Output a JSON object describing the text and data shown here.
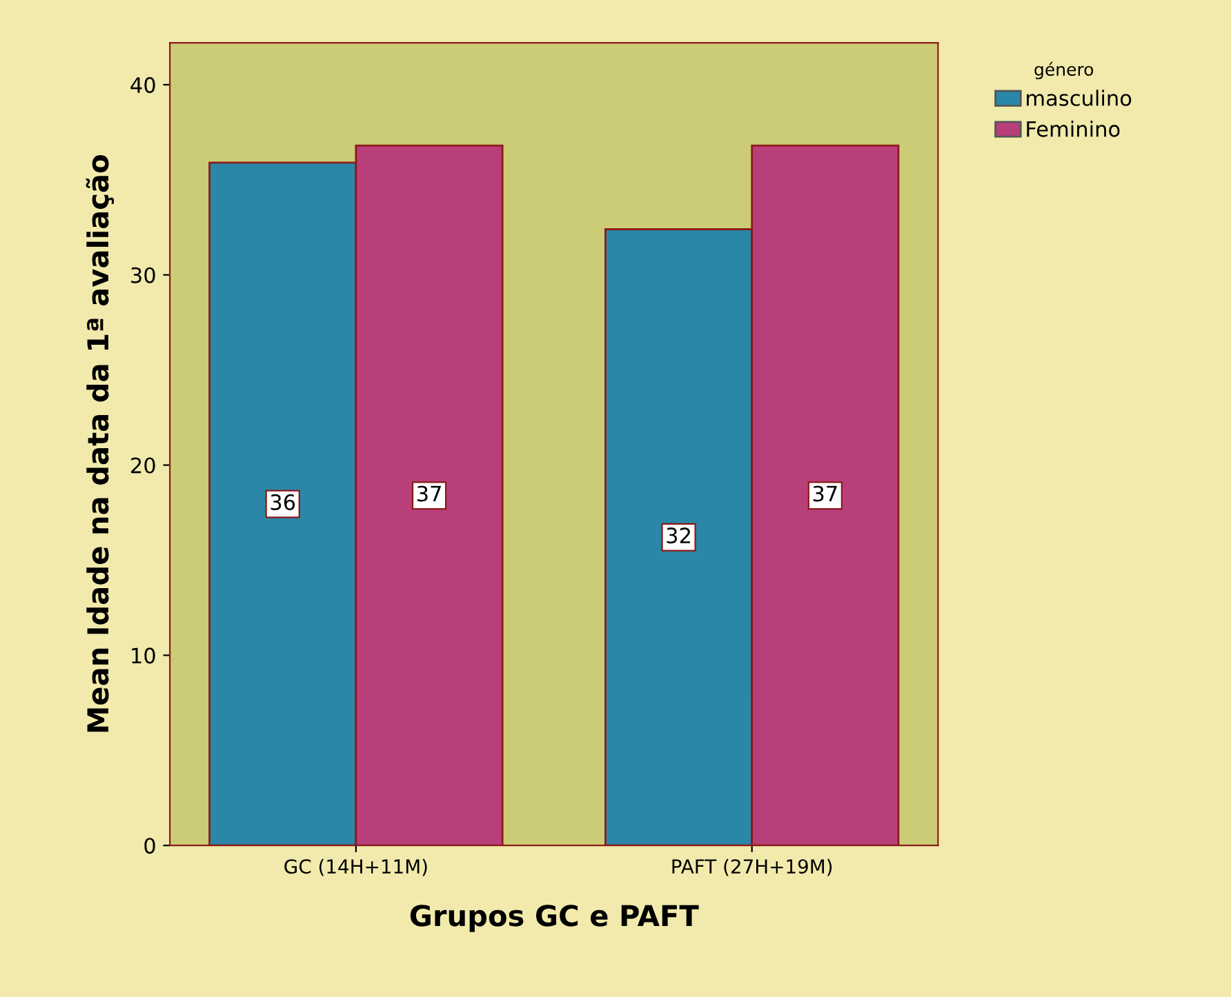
{
  "chart_data": {
    "type": "bar",
    "xlabel": "Grupos GC e PAFT",
    "ylabel": "Mean Idade na data da 1ª avaliação",
    "legend_title": "género",
    "categories": [
      "GC (14H+11M)",
      "PAFT (27H+19M)"
    ],
    "series": [
      {
        "name": "masculino",
        "color": "#2a87a8",
        "values": [
          35.9,
          32.4
        ],
        "value_labels": [
          "36",
          "32"
        ]
      },
      {
        "name": "Feminino",
        "color": "#b83f7a",
        "values": [
          36.8,
          36.8
        ],
        "value_labels": [
          "37",
          "37"
        ]
      }
    ],
    "ylim": [
      0,
      42.2
    ],
    "yticks": [
      0,
      10,
      20,
      30,
      40
    ],
    "grid": false,
    "legend": "top right"
  }
}
